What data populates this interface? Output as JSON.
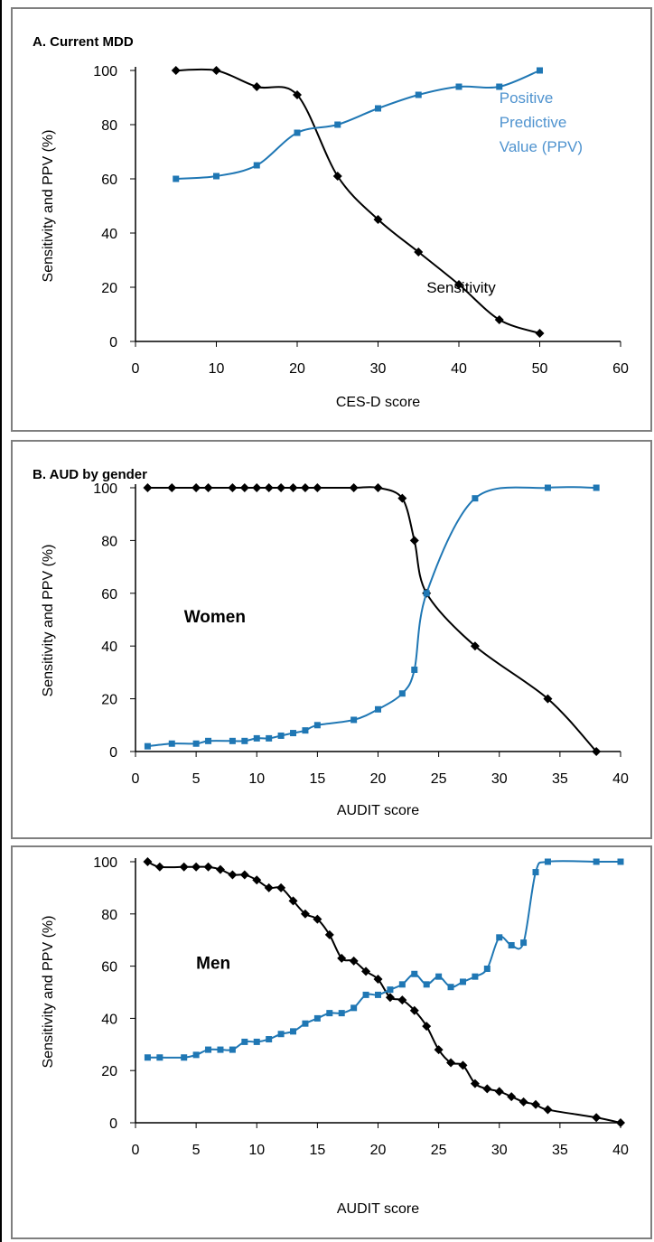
{
  "colors": {
    "sensitivity": "#000000",
    "ppv": "#1f77b4",
    "ppv_label": "#4f93cf",
    "frame": "#7f7f7f"
  },
  "chart_data": [
    {
      "type": "line",
      "title": "A. Current MDD",
      "xlabel": "CES-D score",
      "ylabel": "Sensitivity and PPV (%)",
      "xlim": [
        0,
        60
      ],
      "ylim": [
        0,
        100
      ],
      "xticks": [
        0,
        10,
        20,
        30,
        40,
        50,
        60
      ],
      "yticks": [
        0,
        20,
        40,
        60,
        80,
        100
      ],
      "grid": false,
      "annotations": [
        {
          "text": "Positive",
          "x": 45,
          "y": 88,
          "series": "ppv"
        },
        {
          "text": "Predictive",
          "x": 45,
          "y": 79,
          "series": "ppv"
        },
        {
          "text": "Value (PPV)",
          "x": 45,
          "y": 70,
          "series": "ppv"
        },
        {
          "text": "Sensitivity",
          "x": 36,
          "y": 18,
          "series": "sensitivity"
        }
      ],
      "series": [
        {
          "key": "sensitivity",
          "marker": "diamond",
          "x": [
            5,
            10,
            15,
            20,
            25,
            30,
            35,
            40,
            45,
            50
          ],
          "y": [
            100,
            100,
            94,
            91,
            61,
            45,
            33,
            21,
            8,
            3
          ]
        },
        {
          "key": "ppv",
          "marker": "square",
          "x": [
            5,
            10,
            15,
            20,
            25,
            30,
            35,
            40,
            45,
            50
          ],
          "y": [
            60,
            61,
            65,
            77,
            80,
            86,
            91,
            94,
            94,
            100
          ]
        }
      ]
    },
    {
      "type": "line",
      "title": "B. AUD by gender",
      "xlabel": "AUDIT score",
      "ylabel": "Sensitivity and PPV (%)",
      "xlim": [
        0,
        40
      ],
      "ylim": [
        0,
        100
      ],
      "xticks": [
        0,
        5,
        10,
        15,
        20,
        25,
        30,
        35,
        40
      ],
      "yticks": [
        0,
        20,
        40,
        60,
        80,
        100
      ],
      "grid": false,
      "annotations": [
        {
          "text": "Women",
          "x": 4,
          "y": 49,
          "bold": true
        }
      ],
      "series": [
        {
          "key": "sensitivity",
          "marker": "diamond",
          "x": [
            1,
            3,
            5,
            6,
            8,
            9,
            10,
            11,
            12,
            13,
            14,
            15,
            18,
            20,
            22,
            23,
            24,
            28,
            34,
            38
          ],
          "y": [
            100,
            100,
            100,
            100,
            100,
            100,
            100,
            100,
            100,
            100,
            100,
            100,
            100,
            100,
            96,
            80,
            60,
            40,
            20,
            0
          ]
        },
        {
          "key": "ppv",
          "marker": "square",
          "x": [
            1,
            3,
            5,
            6,
            8,
            9,
            10,
            11,
            12,
            13,
            14,
            15,
            18,
            20,
            22,
            23,
            24,
            28,
            34,
            38
          ],
          "y": [
            2,
            3,
            3,
            4,
            4,
            4,
            5,
            5,
            6,
            7,
            8,
            10,
            12,
            16,
            22,
            31,
            60,
            96,
            100,
            100
          ]
        }
      ]
    },
    {
      "type": "line",
      "title": "",
      "xlabel": "AUDIT score",
      "ylabel": "Sensitivity and PPV (%)",
      "xlim": [
        0,
        40
      ],
      "ylim": [
        0,
        100
      ],
      "xticks": [
        0,
        5,
        10,
        15,
        20,
        25,
        30,
        35,
        40
      ],
      "yticks": [
        0,
        20,
        40,
        60,
        80,
        100
      ],
      "grid": false,
      "annotations": [
        {
          "text": "Men",
          "x": 5,
          "y": 59,
          "bold": true
        }
      ],
      "series": [
        {
          "key": "sensitivity",
          "marker": "diamond",
          "x": [
            1,
            2,
            4,
            5,
            6,
            7,
            8,
            9,
            10,
            11,
            12,
            13,
            14,
            15,
            16,
            17,
            18,
            19,
            20,
            21,
            22,
            23,
            24,
            25,
            26,
            27,
            28,
            29,
            30,
            31,
            32,
            33,
            34,
            38,
            40
          ],
          "y": [
            100,
            98,
            98,
            98,
            98,
            97,
            95,
            95,
            93,
            90,
            90,
            85,
            80,
            78,
            72,
            63,
            62,
            58,
            55,
            48,
            47,
            43,
            37,
            28,
            23,
            22,
            15,
            13,
            12,
            10,
            8,
            7,
            5,
            2,
            0
          ]
        },
        {
          "key": "ppv",
          "marker": "square",
          "x": [
            1,
            2,
            4,
            5,
            6,
            7,
            8,
            9,
            10,
            11,
            12,
            13,
            14,
            15,
            16,
            17,
            18,
            19,
            20,
            21,
            22,
            23,
            24,
            25,
            26,
            27,
            28,
            29,
            30,
            31,
            32,
            33,
            34,
            38,
            40
          ],
          "y": [
            25,
            25,
            25,
            26,
            28,
            28,
            28,
            31,
            31,
            32,
            34,
            35,
            38,
            40,
            42,
            42,
            44,
            49,
            49,
            51,
            53,
            57,
            53,
            56,
            52,
            54,
            56,
            59,
            71,
            68,
            69,
            96,
            100,
            100,
            100
          ]
        }
      ]
    }
  ]
}
